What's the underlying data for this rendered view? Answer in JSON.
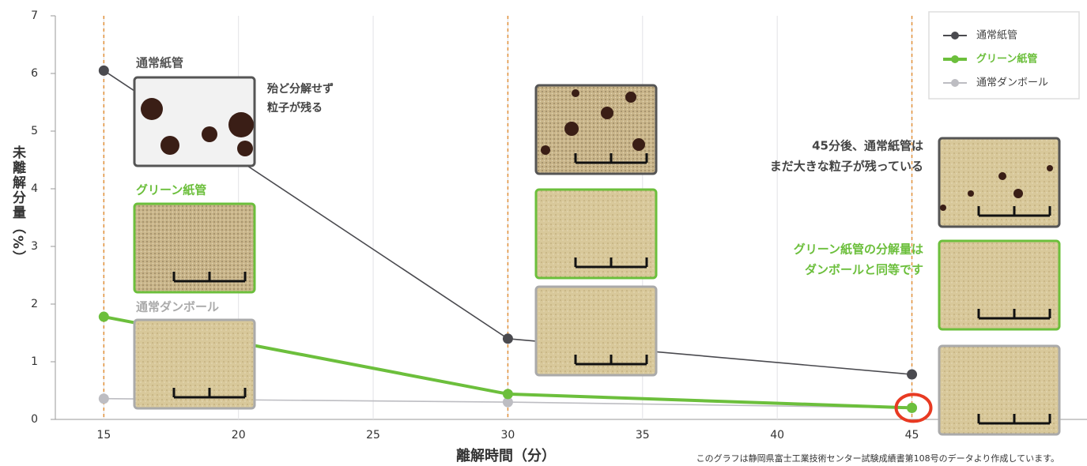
{
  "chart_data": {
    "type": "line",
    "x_label": "離解時間（分）",
    "y_label": "未離解分量（%）",
    "x": [
      15,
      30,
      45
    ],
    "series": [
      {
        "name": "通常紙管",
        "color": "#4a4a4f",
        "values": [
          6.05,
          1.4,
          0.78
        ]
      },
      {
        "name": "グリーン紙管",
        "color": "#6cbf3c",
        "values": [
          1.78,
          0.44,
          0.2
        ]
      },
      {
        "name": "通常ダンボール",
        "color": "#bdbdc2",
        "values": [
          0.36,
          0.3,
          0.2
        ]
      }
    ],
    "xlim": [
      13.2,
      51.5
    ],
    "xticks": [
      15,
      20,
      25,
      30,
      35,
      40,
      45
    ],
    "ylim": [
      0,
      7
    ],
    "yticks": [
      0,
      1,
      2,
      3,
      4,
      5,
      6,
      7
    ],
    "grid": true,
    "legend": "upper right",
    "photo_labels": [
      "通常紙管",
      "グリーン紙管",
      "通常ダンボール"
    ],
    "annotations": [
      {
        "lines": [
          "殆ど分解せず",
          "粒子が残る"
        ]
      },
      {
        "lines": [
          "45分後、通常紙管は",
          "まだ大きな粒子が残っている"
        ]
      },
      {
        "lines": [
          "グリーン紙管の分解量は",
          "ダンボールと同等です"
        ]
      }
    ],
    "footnote": "このグラフは静岡県富士工業技術センター試験成績書第108号のデータより作成しています。"
  }
}
